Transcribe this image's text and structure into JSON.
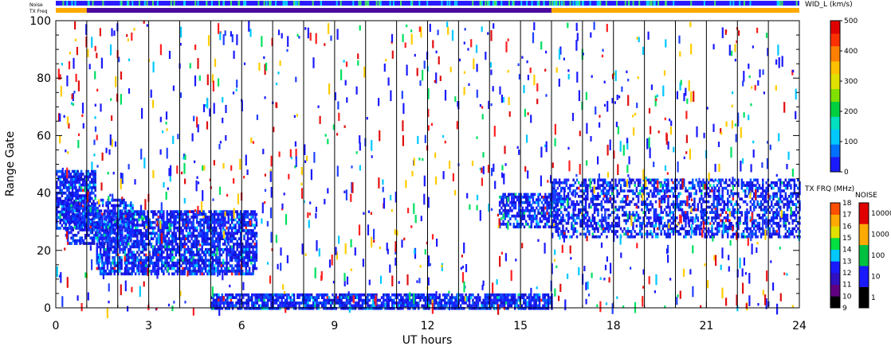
{
  "chart_data": {
    "type": "heatmap",
    "xlabel": "UT hours",
    "ylabel": "Range Gate",
    "xlim": [
      0,
      24
    ],
    "ylim": [
      0,
      100
    ],
    "x_ticks": [
      "0",
      "3",
      "6",
      "9",
      "12",
      "15",
      "18",
      "21",
      "24"
    ],
    "y_ticks": [
      "0",
      "20",
      "40",
      "60",
      "80",
      "100"
    ],
    "grid": "vertical lines every hour",
    "top_strips": {
      "noise_label": "Noise",
      "txfreq_label": "TX Freq",
      "txfreq_purple_start_hour": 1,
      "txfreq_purple_end_hour": 16
    },
    "colorbar_main": {
      "title": "WID_L (km/s)",
      "ticks": [
        "0",
        "100",
        "200",
        "300",
        "400",
        "500"
      ],
      "range": [
        0,
        500
      ]
    },
    "colorbar_txfreq": {
      "title": "TX FRQ (MHz)",
      "ticks": [
        "9",
        "10",
        "11",
        "12",
        "13",
        "14",
        "15",
        "16",
        "17",
        "18"
      ]
    },
    "colorbar_noise": {
      "title": "NOISE",
      "ticks": [
        "1",
        "10",
        "100",
        "1000",
        "10000"
      ]
    },
    "regions": [
      {
        "name": "band-near",
        "t0": 5.0,
        "t1": 16.0,
        "g0": 0,
        "g1": 5,
        "density": 0.8
      },
      {
        "name": "band-early",
        "t0": 0,
        "t1": 1.3,
        "g0": 28,
        "g1": 48,
        "density": 0.8
      },
      {
        "name": "band-late1",
        "t0": 14.3,
        "t1": 16.2,
        "g0": 28,
        "g1": 40,
        "density": 0.65
      },
      {
        "name": "band-late2",
        "t0": 16.0,
        "t1": 24,
        "g0": 25,
        "g1": 45,
        "density": 0.5
      },
      {
        "name": "blob-morning",
        "t0": 1.3,
        "t1": 6.5,
        "g0": 12,
        "g1": 34,
        "density": 0.75
      },
      {
        "name": "blob-early",
        "t0": 0.3,
        "t1": 2.5,
        "g0": 22,
        "g1": 38,
        "density": 0.6
      }
    ]
  }
}
